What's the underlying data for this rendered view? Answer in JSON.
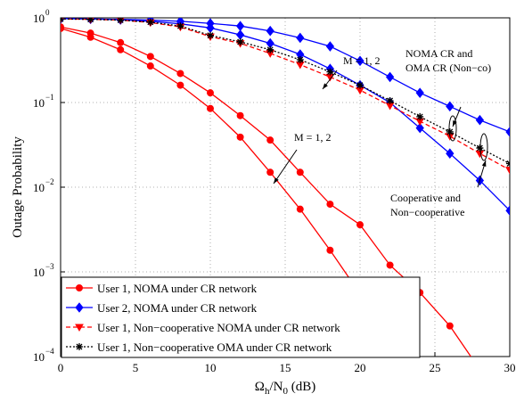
{
  "chart_data": {
    "type": "line",
    "y_scale": "log",
    "grid": true,
    "legend_position": "lower left",
    "ylabel": "Outage Probability",
    "xlabel": [
      "Ω",
      "h",
      "/N",
      "0",
      " (dB)"
    ],
    "x": [
      0,
      2,
      4,
      6,
      8,
      10,
      12,
      14,
      16,
      18,
      20,
      22,
      24,
      26,
      28,
      30
    ],
    "xlim": [
      0,
      30
    ],
    "xticks": [
      0,
      5,
      10,
      15,
      20,
      25,
      30
    ],
    "ylim": [
      0.0001,
      1
    ],
    "yticks": [
      {
        "value": 0.0001,
        "label": "10",
        "exponent": "−4"
      },
      {
        "value": 0.001,
        "label": "10",
        "exponent": "−3"
      },
      {
        "value": 0.01,
        "label": "10",
        "exponent": "−2"
      },
      {
        "value": 0.1,
        "label": "10",
        "exponent": "−1"
      },
      {
        "value": 1,
        "label": "10",
        "exponent": "0"
      }
    ],
    "series": [
      {
        "name": "User 1, NOMA under CR network",
        "color": "#ff0000",
        "marker": "circle",
        "line": "solid",
        "values": [
          [
            0.75,
            0.59,
            0.42,
            0.27,
            0.16,
            0.085,
            0.039,
            0.015,
            0.0055,
            0.0018,
            0.00055,
            0.00014,
            3e-05,
            null,
            null,
            null
          ],
          [
            0.78,
            0.66,
            0.51,
            0.35,
            0.22,
            0.13,
            0.07,
            0.036,
            0.015,
            0.0063,
            0.0036,
            0.0012,
            0.00057,
            0.00023,
            7e-05,
            2.5e-05
          ]
        ]
      },
      {
        "name": "User 2, NOMA under CR network",
        "color": "#0000ff",
        "marker": "diamond",
        "line": "solid",
        "values": [
          [
            0.98,
            0.97,
            0.96,
            0.94,
            0.91,
            0.86,
            0.8,
            0.7,
            0.58,
            0.46,
            0.31,
            0.2,
            0.13,
            0.09,
            0.062,
            0.045
          ],
          [
            0.98,
            0.97,
            0.95,
            0.91,
            0.85,
            0.76,
            0.63,
            0.5,
            0.37,
            0.25,
            0.16,
            0.1,
            0.05,
            0.025,
            0.012,
            0.0053
          ]
        ]
      },
      {
        "name": "User 1, Non−cooperative NOMA under CR network",
        "color": "#ff0000",
        "marker": "triangle",
        "line": "dashed",
        "values": [
          0.97,
          0.96,
          0.94,
          0.88,
          0.78,
          0.6,
          0.5,
          0.38,
          0.28,
          0.2,
          0.14,
          0.092,
          0.06,
          0.04,
          0.025,
          0.016
        ]
      },
      {
        "name": "User 1, Non−cooperative OMA under CR network",
        "color": "#000000",
        "marker": "star",
        "line": "dotted",
        "values": [
          0.97,
          0.96,
          0.94,
          0.89,
          0.8,
          0.62,
          0.52,
          0.42,
          0.32,
          0.23,
          0.16,
          0.105,
          0.068,
          0.045,
          0.029,
          0.019
        ]
      }
    ],
    "annotations": [
      {
        "lines": [
          "M = 1, 2"
        ]
      },
      {
        "lines": [
          "M = 1, 2"
        ]
      },
      {
        "lines": [
          "NOMA CR and",
          "OMA CR (Non−co)"
        ]
      },
      {
        "lines": [
          "Cooperative and",
          "Non−cooperative"
        ]
      }
    ]
  }
}
